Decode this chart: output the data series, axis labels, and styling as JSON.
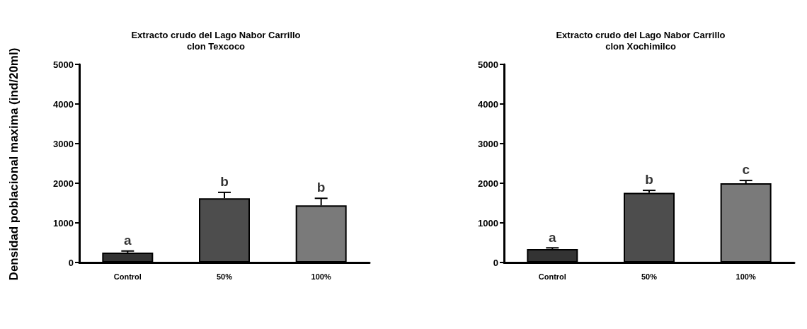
{
  "chart_data": [
    {
      "type": "bar",
      "title": "Extracto crudo del Lago Nabor Carrillo\nclon Texcoco",
      "ylabel": "Densidad poblacional maxima (ind/20ml)",
      "categories": [
        "Control",
        "50%",
        "100%"
      ],
      "values": [
        250,
        1620,
        1440
      ],
      "colors": [
        "#333333",
        "#4d4d4d",
        "#7a7a7a"
      ],
      "errors": [
        40,
        150,
        180
      ],
      "ylim": [
        0,
        5000
      ],
      "yticks": [
        0,
        1000,
        2000,
        3000,
        4000,
        5000
      ],
      "grid": false,
      "annotations": [
        {
          "text": "a",
          "x": "Control",
          "y": 285
        },
        {
          "text": "b",
          "x": "50%",
          "y": 1770
        },
        {
          "text": "b",
          "x": "100%",
          "y": 1620
        }
      ]
    },
    {
      "type": "bar",
      "title": "Extracto crudo del Lago Nabor Carrillo\nclon Xochimilco",
      "categories": [
        "Control",
        "50%",
        "100%"
      ],
      "values": [
        340,
        1760,
        2000
      ],
      "colors": [
        "#333333",
        "#4d4d4d",
        "#7a7a7a"
      ],
      "errors": [
        30,
        60,
        70
      ],
      "ylim": [
        0,
        5000
      ],
      "yticks": [
        0,
        1000,
        2000,
        3000,
        4000,
        5000
      ],
      "grid": false,
      "annotations": [
        {
          "text": "a",
          "x": "Control",
          "y": 360
        },
        {
          "text": "b",
          "x": "50%",
          "y": 1815
        },
        {
          "text": "c",
          "x": "100%",
          "y": 2070
        }
      ]
    }
  ]
}
